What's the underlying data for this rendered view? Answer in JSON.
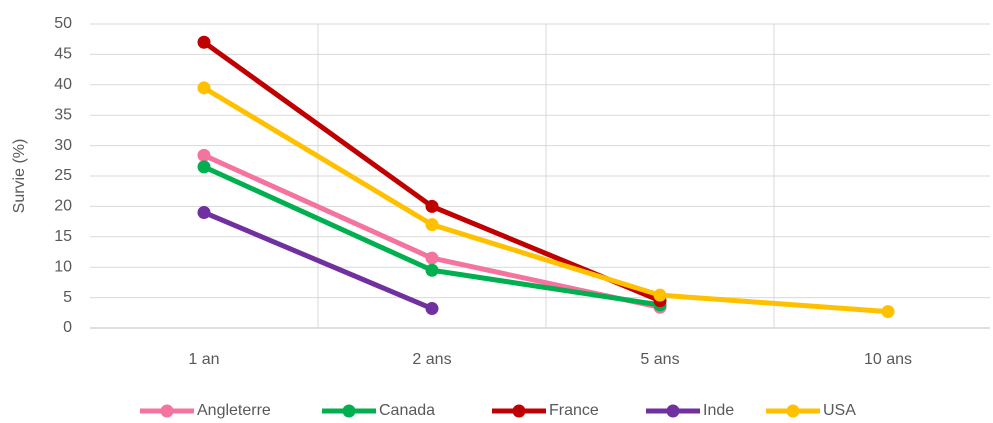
{
  "chart_data": {
    "type": "line",
    "y_label": "Survie (%)",
    "categories": [
      "1 an",
      "2 ans",
      "5 ans",
      "10 ans"
    ],
    "series": [
      {
        "name": "Angleterre",
        "color": "#f4739f",
        "values": [
          28.4,
          11.5,
          3.4,
          null
        ]
      },
      {
        "name": "Canada",
        "color": "#00b050",
        "values": [
          26.5,
          9.5,
          3.8,
          null
        ]
      },
      {
        "name": "France",
        "color": "#c00000",
        "values": [
          47,
          20,
          4.5,
          null
        ]
      },
      {
        "name": "Inde",
        "color": "#7030a0",
        "values": [
          19,
          3.2,
          null,
          null
        ]
      },
      {
        "name": "USA",
        "color": "#ffc000",
        "values": [
          39.5,
          17,
          5.4,
          2.7
        ]
      }
    ],
    "ylim": [
      0,
      50
    ],
    "yticks": [
      0,
      5,
      10,
      15,
      20,
      25,
      30,
      35,
      40,
      45,
      50
    ],
    "grid": true,
    "legend": "bottom"
  }
}
